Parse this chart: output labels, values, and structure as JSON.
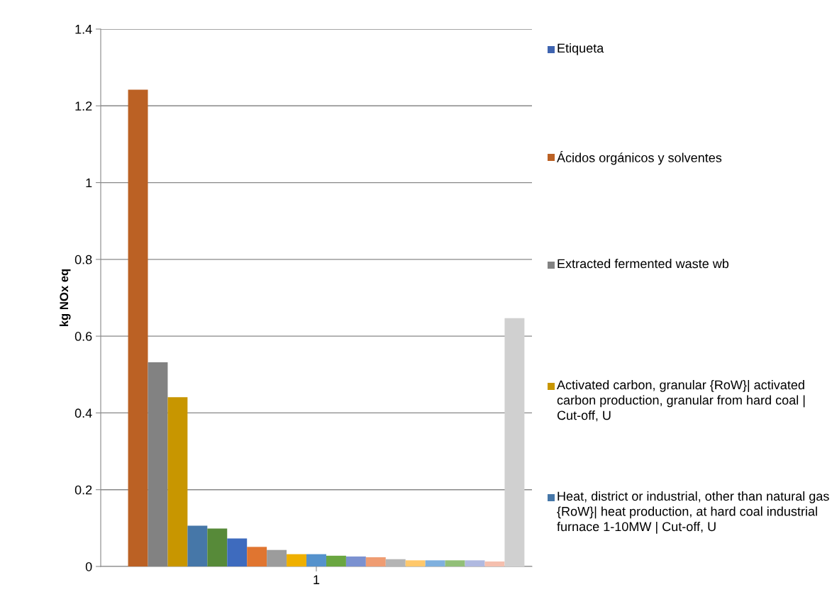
{
  "chart_data": {
    "type": "bar",
    "ylabel": "kg NOx eq",
    "categories": [
      "1"
    ],
    "ylim": [
      0,
      1.4
    ],
    "yticks": [
      0,
      0.2,
      0.4,
      0.6,
      0.8,
      1,
      1.2,
      1.4
    ],
    "grid": "y",
    "legend": "right",
    "series": [
      {
        "name": "Etiqueta",
        "color": "#3f64b0",
        "values": [
          0
        ]
      },
      {
        "name": "Ácidos orgánicos y solventes",
        "color": "#bb6124",
        "values": [
          1.242
        ]
      },
      {
        "name": "Extracted fermented waste wb",
        "color": "#828282",
        "values": [
          0.532
        ]
      },
      {
        "name": "Activated carbon, granular {RoW}| activated carbon production, granular from hard coal | Cut-off, U",
        "color": "#c89600",
        "values": [
          0.441
        ]
      },
      {
        "name": "Heat, district or industrial, other than natural gas {RoW}| heat production, at hard coal industrial furnace 1-10MW | Cut-off, U",
        "color": "#4677a8",
        "values": [
          0.106
        ]
      },
      {
        "color": "#578a39",
        "values": [
          0.099
        ]
      },
      {
        "color": "#3e6bbe",
        "values": [
          0.073
        ]
      },
      {
        "color": "#e07530",
        "values": [
          0.051
        ]
      },
      {
        "color": "#9c9c9c",
        "values": [
          0.043
        ]
      },
      {
        "color": "#efb000",
        "values": [
          0.032
        ]
      },
      {
        "color": "#5592cc",
        "values": [
          0.032
        ]
      },
      {
        "color": "#6aa641",
        "values": [
          0.028
        ]
      },
      {
        "color": "#7b91d0",
        "values": [
          0.026
        ]
      },
      {
        "color": "#ef9c72",
        "values": [
          0.024
        ]
      },
      {
        "color": "#b4b4b4",
        "values": [
          0.019
        ]
      },
      {
        "color": "#ffc86b",
        "values": [
          0.016
        ]
      },
      {
        "color": "#7fb0de",
        "values": [
          0.016
        ]
      },
      {
        "color": "#92bf78",
        "values": [
          0.016
        ]
      },
      {
        "color": "#b0b9e0",
        "values": [
          0.016
        ]
      },
      {
        "color": "#f5bfae",
        "values": [
          0.013
        ]
      },
      {
        "color": "#d0d0d0",
        "values": [
          0.647
        ]
      }
    ]
  }
}
